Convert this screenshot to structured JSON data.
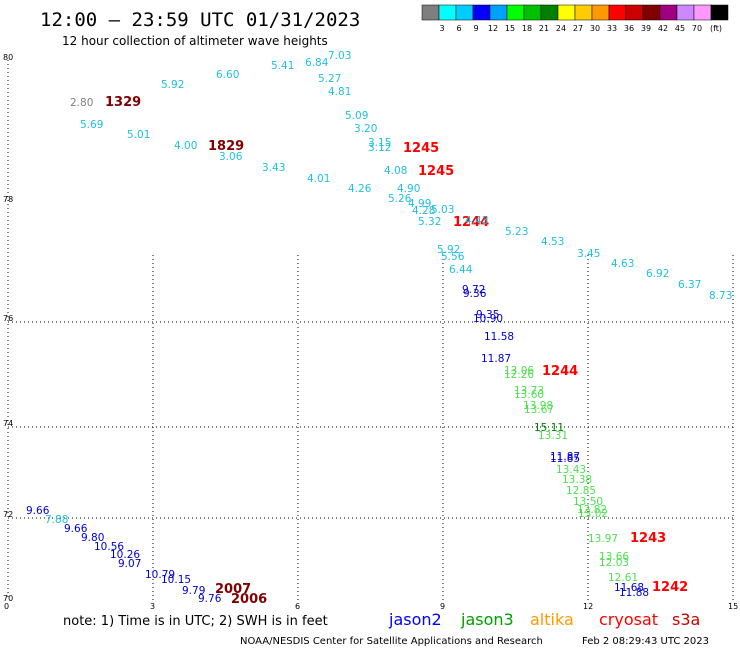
{
  "header": {
    "title": "12:00 – 23:59 UTC 01/31/2023",
    "subtitle": "12 hour collection of altimeter wave heights"
  },
  "colorbar": {
    "colors": [
      "#7f7f7f",
      "#00ffff",
      "#00ccff",
      "#0000ff",
      "#00a0ff",
      "#00ff00",
      "#00c000",
      "#008000",
      "#ffff00",
      "#ffcc00",
      "#ff9900",
      "#ff0000",
      "#cc0000",
      "#800000",
      "#a00080",
      "#cc88ff",
      "#ff99ff",
      "#000000"
    ],
    "labels": [
      "3",
      "6",
      "9",
      "12",
      "15",
      "18",
      "21",
      "24",
      "27",
      "30",
      "33",
      "36",
      "39",
      "42",
      "45",
      "70"
    ],
    "unit": "(ft)"
  },
  "axes": {
    "x_ticks": [
      "0",
      "3",
      "6",
      "9",
      "12",
      "15"
    ],
    "y_ticks": [
      "80",
      "78",
      "76",
      "74",
      "72",
      "70"
    ]
  },
  "footer": {
    "note": "note:  1) Time is in UTC; 2) SWH is in feet",
    "credit": "NOAA/NESDIS Center for Satellite Applications and Research",
    "timestamp": "Feb  2 08:29:43 UTC 2023",
    "satellites": [
      {
        "name": "jason2",
        "color": "#0000ff"
      },
      {
        "name": "jason3",
        "color": "#00a000"
      },
      {
        "name": "altika",
        "color": "#ff9900"
      },
      {
        "name": "cryosat",
        "color": "#ff0000"
      },
      {
        "name": "s3a",
        "color": "#cc0000"
      }
    ]
  },
  "colors": {
    "cyan": "#20c0e0",
    "blue": "#0000cc",
    "green": "#50e050",
    "red": "#ff0000",
    "maroon": "#800000",
    "gray": "#808080",
    "darkgreen": "#008000"
  },
  "observations": [
    {
      "text": "7.03",
      "c": "cyan"
    },
    {
      "text": "6.84",
      "c": "cyan"
    },
    {
      "text": "5.41",
      "c": "cyan"
    },
    {
      "text": "6.60",
      "c": "cyan"
    },
    {
      "text": "5.27",
      "c": "cyan"
    },
    {
      "text": "5.92",
      "c": "cyan"
    },
    {
      "text": "4.81",
      "c": "cyan"
    },
    {
      "text": "2.80",
      "c": "gray"
    },
    {
      "text": "1329",
      "c": "maroon",
      "bold": true
    },
    {
      "text": "5.09",
      "c": "cyan"
    },
    {
      "text": "5.69",
      "c": "cyan"
    },
    {
      "text": "3.20",
      "c": "cyan"
    },
    {
      "text": "5.01",
      "c": "cyan"
    },
    {
      "text": "3.15",
      "c": "cyan"
    },
    {
      "text": "3.12",
      "c": "cyan"
    },
    {
      "text": "4.00",
      "c": "cyan"
    },
    {
      "text": "1829",
      "c": "maroon",
      "bold": true
    },
    {
      "text": "1245",
      "c": "red",
      "bold": true
    },
    {
      "text": "3.06",
      "c": "cyan"
    },
    {
      "text": "3.43",
      "c": "cyan"
    },
    {
      "text": "4.08",
      "c": "cyan"
    },
    {
      "text": "1245",
      "c": "red",
      "bold": true
    },
    {
      "text": "4.01",
      "c": "cyan"
    },
    {
      "text": "4.26",
      "c": "cyan"
    },
    {
      "text": "4.90",
      "c": "cyan"
    },
    {
      "text": "5.26",
      "c": "cyan"
    },
    {
      "text": "4.99",
      "c": "cyan"
    },
    {
      "text": "4.28",
      "c": "cyan"
    },
    {
      "text": "5.03",
      "c": "cyan"
    },
    {
      "text": "5.32",
      "c": "cyan"
    },
    {
      "text": "1244",
      "c": "red",
      "bold": true
    },
    {
      "text": "4.43",
      "c": "cyan"
    },
    {
      "text": "5.23",
      "c": "cyan"
    },
    {
      "text": "4.53",
      "c": "cyan"
    },
    {
      "text": "5.92",
      "c": "cyan"
    },
    {
      "text": "3.45",
      "c": "cyan"
    },
    {
      "text": "5.56",
      "c": "cyan"
    },
    {
      "text": "4.63",
      "c": "cyan"
    },
    {
      "text": "6.44",
      "c": "cyan"
    },
    {
      "text": "6.92",
      "c": "cyan"
    },
    {
      "text": "6.37",
      "c": "cyan"
    },
    {
      "text": "9.72",
      "c": "blue"
    },
    {
      "text": "9.36",
      "c": "blue"
    },
    {
      "text": "8.73",
      "c": "cyan"
    },
    {
      "text": "9.35",
      "c": "blue"
    },
    {
      "text": "10.90",
      "c": "blue"
    },
    {
      "text": "11.58",
      "c": "blue"
    },
    {
      "text": "11.87",
      "c": "blue"
    },
    {
      "text": "13.06",
      "c": "green"
    },
    {
      "text": "12.26",
      "c": "green"
    },
    {
      "text": "1244",
      "c": "red",
      "bold": true
    },
    {
      "text": "13.73",
      "c": "green"
    },
    {
      "text": "13.60",
      "c": "green"
    },
    {
      "text": "13.98",
      "c": "green"
    },
    {
      "text": "13.67",
      "c": "green"
    },
    {
      "text": "15.11",
      "c": "darkgreen"
    },
    {
      "text": "13.31",
      "c": "green"
    },
    {
      "text": "11.87",
      "c": "blue"
    },
    {
      "text": "11.85",
      "c": "blue"
    },
    {
      "text": "13.43",
      "c": "green"
    },
    {
      "text": "13.38",
      "c": "green"
    },
    {
      "text": "12.85",
      "c": "green"
    },
    {
      "text": "13.50",
      "c": "green"
    },
    {
      "text": "12.82",
      "c": "green"
    },
    {
      "text": "13.02",
      "c": "green"
    },
    {
      "text": "13.97",
      "c": "green"
    },
    {
      "text": "1243",
      "c": "red",
      "bold": true
    },
    {
      "text": "13.66",
      "c": "green"
    },
    {
      "text": "12.03",
      "c": "green"
    },
    {
      "text": "12.61",
      "c": "green"
    },
    {
      "text": "1242",
      "c": "red",
      "bold": true
    },
    {
      "text": "11.68",
      "c": "blue"
    },
    {
      "text": "11.88",
      "c": "blue"
    },
    {
      "text": "9.66",
      "c": "blue"
    },
    {
      "text": "7.88",
      "c": "cyan"
    },
    {
      "text": "9.66",
      "c": "blue"
    },
    {
      "text": "9.80",
      "c": "blue"
    },
    {
      "text": "10.56",
      "c": "blue"
    },
    {
      "text": "10.26",
      "c": "blue"
    },
    {
      "text": "9.07",
      "c": "blue"
    },
    {
      "text": "10.79",
      "c": "blue"
    },
    {
      "text": "10.15",
      "c": "blue"
    },
    {
      "text": "9.79",
      "c": "blue"
    },
    {
      "text": "2007",
      "c": "maroon",
      "bold": true
    },
    {
      "text": "9.76",
      "c": "blue"
    },
    {
      "text": "2006",
      "c": "maroon",
      "bold": true
    }
  ]
}
